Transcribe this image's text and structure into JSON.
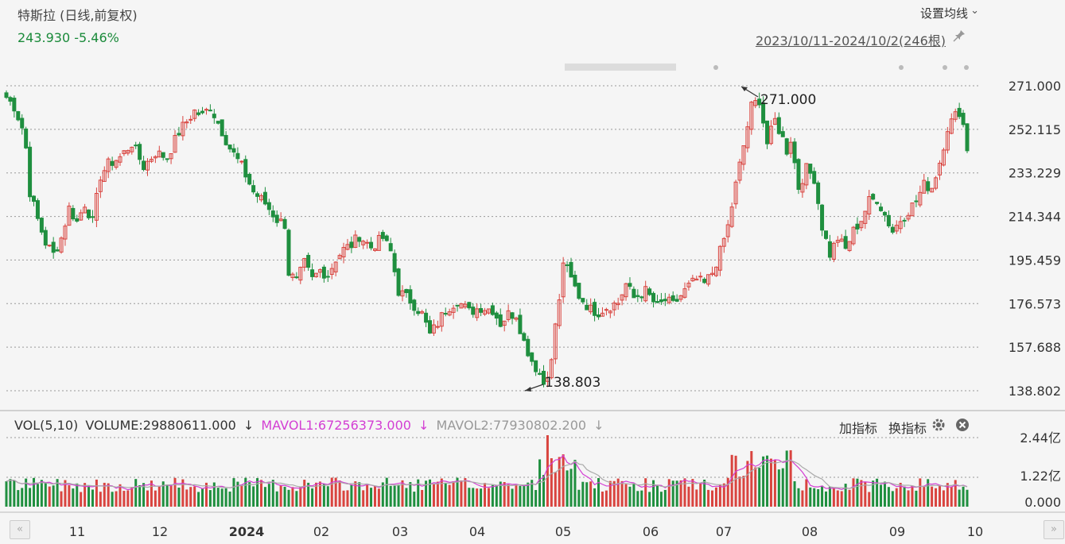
{
  "header": {
    "title": "特斯拉 (日线,前复权)",
    "price": "243.930",
    "change": "-5.46%",
    "settings_label": "设置均线",
    "date_range": "2023/10/11-2024/10/2(246根)"
  },
  "volume_bar": {
    "vol": "VOL(5,10)",
    "volume": "VOLUME:29880611.000",
    "mavol1": "MAVOL1:67256373.000",
    "mavol2": "MAVOL2:77930802.200",
    "arrow": "↓",
    "add_indicator": "加指标",
    "switch_indicator": "换指标"
  },
  "colors": {
    "up": "#d9443f",
    "down": "#1f8f3f",
    "mavol1": "#d33fd3",
    "mavol2": "#aaaaaa",
    "grid": "#999999"
  },
  "chart_data": {
    "type": "candlestick",
    "y_ticks": [
      "271.000",
      "252.115",
      "233.229",
      "214.344",
      "195.459",
      "176.573",
      "157.688",
      "138.802"
    ],
    "ylim": [
      138.802,
      271.0
    ],
    "annotations": [
      {
        "label": "271.000",
        "value": 271.0
      },
      {
        "label": "138.803",
        "value": 138.803
      }
    ],
    "volume_ticks": [
      "2.44亿",
      "1.22亿",
      "0.000"
    ],
    "x_labels": [
      "11",
      "12",
      "2024",
      "02",
      "03",
      "04",
      "05",
      "06",
      "07",
      "08",
      "09",
      "10"
    ],
    "price_path": [
      [
        0,
        266
      ],
      [
        2,
        262
      ],
      [
        4,
        253
      ],
      [
        5,
        244
      ],
      [
        6,
        225
      ],
      [
        8,
        213
      ],
      [
        10,
        203
      ],
      [
        12,
        198
      ],
      [
        14,
        205
      ],
      [
        16,
        218
      ],
      [
        18,
        212
      ],
      [
        20,
        220
      ],
      [
        22,
        212
      ],
      [
        24,
        232
      ],
      [
        26,
        237
      ],
      [
        29,
        240
      ],
      [
        32,
        246
      ],
      [
        35,
        236
      ],
      [
        38,
        242
      ],
      [
        41,
        240
      ],
      [
        44,
        251
      ],
      [
        48,
        260
      ],
      [
        50,
        258
      ],
      [
        52,
        262
      ],
      [
        54,
        255
      ],
      [
        57,
        244
      ],
      [
        60,
        236
      ],
      [
        63,
        225
      ],
      [
        66,
        220
      ],
      [
        69,
        213
      ],
      [
        71,
        211
      ],
      [
        72,
        190
      ],
      [
        74,
        186
      ],
      [
        76,
        194
      ],
      [
        78,
        187
      ],
      [
        80,
        191
      ],
      [
        82,
        189
      ],
      [
        84,
        196
      ],
      [
        86,
        200
      ],
      [
        88,
        202
      ],
      [
        90,
        206
      ],
      [
        93,
        201
      ],
      [
        96,
        205
      ],
      [
        98,
        199
      ],
      [
        100,
        182
      ],
      [
        103,
        178
      ],
      [
        106,
        172
      ],
      [
        108,
        163
      ],
      [
        110,
        168
      ],
      [
        112,
        174
      ],
      [
        115,
        178
      ],
      [
        118,
        173
      ],
      [
        121,
        175
      ],
      [
        124,
        174
      ],
      [
        126,
        168
      ],
      [
        128,
        172
      ],
      [
        130,
        172
      ],
      [
        132,
        160
      ],
      [
        134,
        152
      ],
      [
        136,
        146
      ],
      [
        137,
        142
      ],
      [
        138,
        147
      ],
      [
        139,
        151
      ],
      [
        140,
        168
      ],
      [
        141,
        177
      ],
      [
        142,
        195
      ],
      [
        144,
        187
      ],
      [
        146,
        180
      ],
      [
        149,
        174
      ],
      [
        151,
        173
      ],
      [
        153,
        175
      ],
      [
        156,
        177
      ],
      [
        158,
        185
      ],
      [
        160,
        179
      ],
      [
        163,
        182
      ],
      [
        166,
        175
      ],
      [
        168,
        178
      ],
      [
        170,
        176
      ],
      [
        172,
        180
      ],
      [
        174,
        184
      ],
      [
        176,
        187
      ],
      [
        178,
        185
      ],
      [
        180,
        190
      ],
      [
        182,
        199
      ],
      [
        184,
        210
      ],
      [
        186,
        228
      ],
      [
        188,
        245
      ],
      [
        190,
        262
      ],
      [
        192,
        265
      ],
      [
        194,
        246
      ],
      [
        196,
        256
      ],
      [
        198,
        248
      ],
      [
        199,
        243
      ],
      [
        200,
        248
      ],
      [
        202,
        227
      ],
      [
        204,
        235
      ],
      [
        206,
        231
      ],
      [
        208,
        210
      ],
      [
        210,
        198
      ],
      [
        212,
        205
      ],
      [
        214,
        200
      ],
      [
        216,
        208
      ],
      [
        218,
        213
      ],
      [
        220,
        221
      ],
      [
        222,
        222
      ],
      [
        224,
        215
      ],
      [
        226,
        208
      ],
      [
        228,
        213
      ],
      [
        230,
        217
      ],
      [
        232,
        221
      ],
      [
        234,
        228
      ],
      [
        236,
        227
      ],
      [
        238,
        238
      ],
      [
        240,
        253
      ],
      [
        242,
        258
      ],
      [
        243,
        260
      ],
      [
        244,
        254
      ],
      [
        245,
        243.93
      ]
    ],
    "volume_peak": 2.44,
    "volume_unit": "亿"
  }
}
